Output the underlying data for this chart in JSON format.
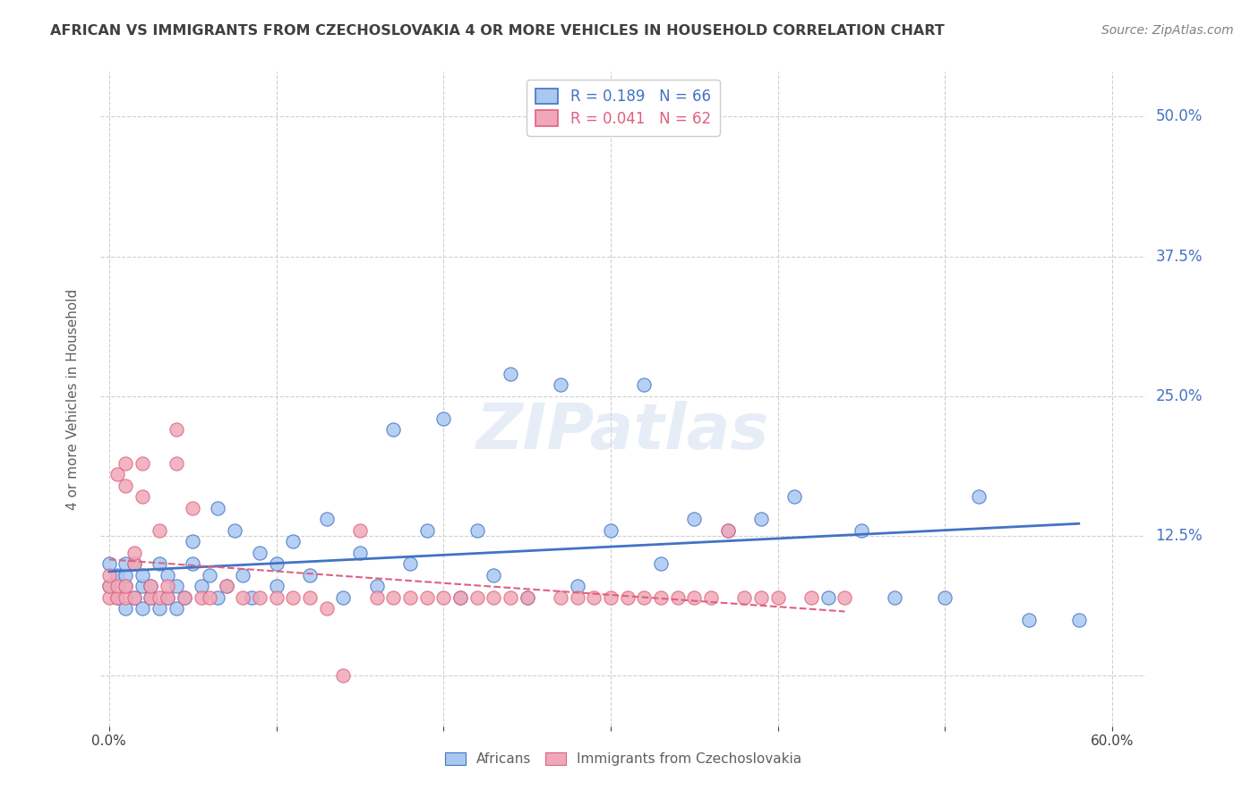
{
  "title": "AFRICAN VS IMMIGRANTS FROM CZECHOSLOVAKIA 4 OR MORE VEHICLES IN HOUSEHOLD CORRELATION CHART",
  "source": "Source: ZipAtlas.com",
  "xlabel_bottom": "",
  "ylabel": "4 or more Vehicles in Household",
  "x_ticks": [
    0.0,
    0.1,
    0.2,
    0.3,
    0.4,
    0.5,
    0.6
  ],
  "x_tick_labels": [
    "0.0%",
    "",
    "",
    "",
    "",
    "",
    "60.0%"
  ],
  "y_ticks": [
    0.0,
    0.125,
    0.25,
    0.375,
    0.5
  ],
  "y_tick_labels_right": [
    "",
    "12.5%",
    "25.0%",
    "37.5%",
    "50.0%"
  ],
  "xlim": [
    -0.005,
    0.62
  ],
  "ylim": [
    -0.045,
    0.54
  ],
  "legend1_label": "Africans",
  "legend2_label": "Immigrants from Czechoslovakia",
  "R1": 0.189,
  "N1": 66,
  "R2": 0.041,
  "N2": 62,
  "scatter_blue_color": "#a8c8f0",
  "scatter_pink_color": "#f0a8b8",
  "line_blue_color": "#4472c4",
  "line_pink_color": "#e06080",
  "legend_box_blue": "#a8c8f0",
  "legend_box_pink": "#f0a8b8",
  "title_color": "#404040",
  "source_color": "#808080",
  "axis_label_color": "#606060",
  "tick_label_color_right": "#4472c4",
  "watermark": "ZIPatlas",
  "africans_x": [
    0.0,
    0.0,
    0.005,
    0.005,
    0.01,
    0.01,
    0.01,
    0.01,
    0.015,
    0.015,
    0.02,
    0.02,
    0.02,
    0.025,
    0.025,
    0.03,
    0.03,
    0.035,
    0.035,
    0.04,
    0.04,
    0.045,
    0.05,
    0.05,
    0.055,
    0.06,
    0.065,
    0.065,
    0.07,
    0.075,
    0.08,
    0.085,
    0.09,
    0.1,
    0.1,
    0.11,
    0.12,
    0.13,
    0.14,
    0.15,
    0.16,
    0.17,
    0.18,
    0.19,
    0.2,
    0.21,
    0.22,
    0.23,
    0.24,
    0.25,
    0.27,
    0.28,
    0.3,
    0.32,
    0.33,
    0.35,
    0.37,
    0.39,
    0.41,
    0.43,
    0.45,
    0.47,
    0.5,
    0.52,
    0.55,
    0.58
  ],
  "africans_y": [
    0.08,
    0.1,
    0.07,
    0.09,
    0.06,
    0.08,
    0.09,
    0.1,
    0.07,
    0.1,
    0.06,
    0.08,
    0.09,
    0.07,
    0.08,
    0.06,
    0.1,
    0.07,
    0.09,
    0.06,
    0.08,
    0.07,
    0.1,
    0.12,
    0.08,
    0.09,
    0.07,
    0.15,
    0.08,
    0.13,
    0.09,
    0.07,
    0.11,
    0.08,
    0.1,
    0.12,
    0.09,
    0.14,
    0.07,
    0.11,
    0.08,
    0.22,
    0.1,
    0.13,
    0.23,
    0.07,
    0.13,
    0.09,
    0.27,
    0.07,
    0.26,
    0.08,
    0.13,
    0.26,
    0.1,
    0.14,
    0.13,
    0.14,
    0.16,
    0.07,
    0.13,
    0.07,
    0.07,
    0.16,
    0.05,
    0.05
  ],
  "czech_x": [
    0.0,
    0.0,
    0.0,
    0.005,
    0.005,
    0.005,
    0.01,
    0.01,
    0.01,
    0.01,
    0.015,
    0.015,
    0.015,
    0.02,
    0.02,
    0.025,
    0.025,
    0.03,
    0.03,
    0.035,
    0.035,
    0.04,
    0.04,
    0.045,
    0.05,
    0.055,
    0.06,
    0.07,
    0.08,
    0.09,
    0.1,
    0.11,
    0.12,
    0.13,
    0.14,
    0.15,
    0.16,
    0.17,
    0.18,
    0.19,
    0.2,
    0.21,
    0.22,
    0.23,
    0.24,
    0.25,
    0.27,
    0.28,
    0.29,
    0.3,
    0.31,
    0.32,
    0.33,
    0.34,
    0.35,
    0.36,
    0.37,
    0.38,
    0.39,
    0.4,
    0.42,
    0.44
  ],
  "czech_y": [
    0.07,
    0.08,
    0.09,
    0.07,
    0.08,
    0.18,
    0.07,
    0.08,
    0.17,
    0.19,
    0.07,
    0.1,
    0.11,
    0.16,
    0.19,
    0.07,
    0.08,
    0.07,
    0.13,
    0.07,
    0.08,
    0.19,
    0.22,
    0.07,
    0.15,
    0.07,
    0.07,
    0.08,
    0.07,
    0.07,
    0.07,
    0.07,
    0.07,
    0.06,
    0.0,
    0.13,
    0.07,
    0.07,
    0.07,
    0.07,
    0.07,
    0.07,
    0.07,
    0.07,
    0.07,
    0.07,
    0.07,
    0.07,
    0.07,
    0.07,
    0.07,
    0.07,
    0.07,
    0.07,
    0.07,
    0.07,
    0.13,
    0.07,
    0.07,
    0.07,
    0.07,
    0.07
  ],
  "grid_color": "#d0d0d0",
  "background_color": "#ffffff"
}
